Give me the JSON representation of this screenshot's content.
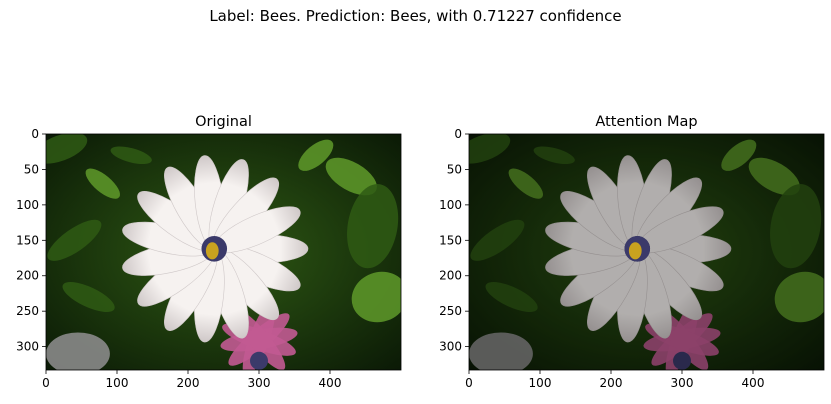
{
  "suptitle": "Label: Bees. Prediction: Bees, with 0.71227 confidence",
  "colors": {
    "petal": "#f6f2f0",
    "petal_shadow": "#cfc8c8",
    "leaf_dark": "#0b1a06",
    "leaf_mid": "#2f5a14",
    "leaf_light": "#5f9a2a",
    "pink": "#c25a92",
    "center": "#3b3a6a",
    "bee": "#c9a21f"
  },
  "chart_data": [
    {
      "type": "image",
      "title": "Original",
      "xlim": [
        0,
        500
      ],
      "ylim": [
        333,
        0
      ],
      "xticks": [
        0,
        100,
        200,
        300,
        400
      ],
      "yticks": [
        0,
        50,
        100,
        150,
        200,
        250,
        300
      ],
      "tint": "none"
    },
    {
      "type": "image",
      "title": "Attention Map",
      "xlim": [
        0,
        500
      ],
      "ylim": [
        333,
        0
      ],
      "xticks": [
        0,
        100,
        200,
        300,
        400
      ],
      "yticks": [
        0,
        50,
        100,
        150,
        200,
        250,
        300
      ],
      "tint": "darkened"
    }
  ]
}
